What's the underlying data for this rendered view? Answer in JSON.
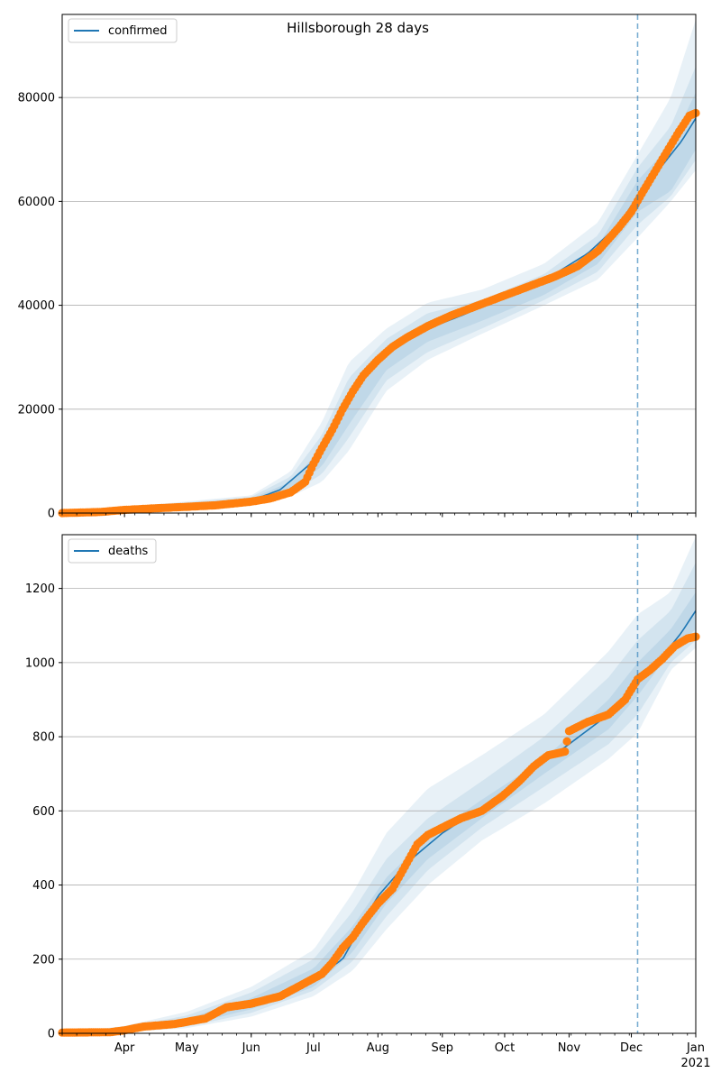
{
  "figure": {
    "title": "Hillsborough 28 days",
    "colors": {
      "model": "#1f77b4",
      "observed": "#ff7f0e",
      "band": "#1f77b4",
      "grid": "#b0b0b0",
      "forecast_line": "#1f77b4"
    }
  },
  "chart_data": [
    {
      "type": "line",
      "panel": "confirmed",
      "title": "Hillsborough 28 days",
      "legend": [
        "confirmed"
      ],
      "legend_position": "upper-left",
      "x_range": [
        "2020-03-02",
        "2021-01-01"
      ],
      "x_ticks": [
        {
          "date": "2020-04-01",
          "label": "Apr"
        },
        {
          "date": "2020-05-01",
          "label": "May"
        },
        {
          "date": "2020-06-01",
          "label": "Jun"
        },
        {
          "date": "2020-07-01",
          "label": "Jul"
        },
        {
          "date": "2020-08-01",
          "label": "Aug"
        },
        {
          "date": "2020-09-01",
          "label": "Sep"
        },
        {
          "date": "2020-10-01",
          "label": "Oct"
        },
        {
          "date": "2020-11-01",
          "label": "Nov"
        },
        {
          "date": "2020-12-01",
          "label": "Dec"
        },
        {
          "date": "2021-01-01",
          "label": "Jan"
        }
      ],
      "x_year_label": "2021",
      "x_tick_labels_shown": false,
      "ylim": [
        0,
        96000
      ],
      "yticks": [
        0,
        20000,
        40000,
        60000,
        80000
      ],
      "grid_y": true,
      "forecast_start": "2020-12-04",
      "model": {
        "name": "confirmed",
        "dates": [
          "2020-03-02",
          "2020-04-01",
          "2020-05-01",
          "2020-06-01",
          "2020-06-15",
          "2020-07-01",
          "2020-07-10",
          "2020-07-20",
          "2020-07-30",
          "2020-08-10",
          "2020-08-25",
          "2020-09-10",
          "2020-09-25",
          "2020-10-10",
          "2020-10-25",
          "2020-11-10",
          "2020-11-25",
          "2020-12-04",
          "2020-12-15",
          "2020-12-25",
          "2021-01-01"
        ],
        "values": [
          0,
          500,
          1200,
          2400,
          4500,
          10000,
          16000,
          23500,
          28500,
          32500,
          35500,
          38000,
          40500,
          43000,
          46000,
          50000,
          55500,
          61000,
          66500,
          71500,
          76000
        ]
      },
      "bands": [
        {
          "dates": [
            "2020-03-02",
            "2020-06-01",
            "2020-06-20",
            "2020-07-05",
            "2020-07-18",
            "2020-08-05",
            "2020-08-25",
            "2020-09-20",
            "2020-10-20",
            "2020-11-15",
            "2020-12-04",
            "2020-12-20",
            "2021-01-01"
          ],
          "lower": [
            0,
            2000,
            4500,
            9000,
            17000,
            27500,
            33000,
            37000,
            42000,
            48000,
            58000,
            62000,
            70000
          ],
          "upper": [
            0,
            2800,
            6000,
            12500,
            23000,
            31500,
            37000,
            39500,
            44500,
            51500,
            64000,
            71000,
            81000
          ]
        },
        {
          "dates": [
            "2020-03-02",
            "2020-06-01",
            "2020-06-20",
            "2020-07-05",
            "2020-07-18",
            "2020-08-05",
            "2020-08-25",
            "2020-09-20",
            "2020-10-20",
            "2020-11-15",
            "2020-12-04",
            "2020-12-20",
            "2021-01-01"
          ],
          "lower": [
            0,
            1700,
            3800,
            7500,
            14500,
            25500,
            31000,
            35500,
            41000,
            46500,
            55500,
            61000,
            68000
          ],
          "upper": [
            0,
            3100,
            7000,
            15000,
            26000,
            33500,
            38500,
            41000,
            46000,
            53500,
            66500,
            74500,
            86000
          ]
        },
        {
          "dates": [
            "2020-03-02",
            "2020-06-01",
            "2020-06-20",
            "2020-07-05",
            "2020-07-18",
            "2020-08-05",
            "2020-08-25",
            "2020-09-20",
            "2020-10-20",
            "2020-11-15",
            "2020-12-04",
            "2020-12-20",
            "2021-01-01"
          ],
          "lower": [
            0,
            1400,
            3200,
            6000,
            12000,
            23500,
            29500,
            34500,
            40000,
            45000,
            53000,
            60000,
            66000
          ],
          "upper": [
            0,
            3400,
            8000,
            17500,
            29000,
            35500,
            40500,
            43000,
            48000,
            56000,
            69000,
            80000,
            95000
          ]
        }
      ],
      "observed": {
        "name": "observed",
        "dates": [
          "2020-03-02",
          "2020-03-20",
          "2020-04-01",
          "2020-04-15",
          "2020-05-01",
          "2020-05-15",
          "2020-06-01",
          "2020-06-10",
          "2020-06-20",
          "2020-06-27",
          "2020-07-01",
          "2020-07-05",
          "2020-07-10",
          "2020-07-15",
          "2020-07-20",
          "2020-07-25",
          "2020-08-01",
          "2020-08-08",
          "2020-08-15",
          "2020-08-25",
          "2020-09-05",
          "2020-09-15",
          "2020-09-25",
          "2020-10-05",
          "2020-10-15",
          "2020-10-25",
          "2020-11-05",
          "2020-11-15",
          "2020-11-25",
          "2020-12-01",
          "2020-12-06",
          "2020-12-12",
          "2020-12-18",
          "2020-12-24",
          "2020-12-29",
          "2021-01-01"
        ],
        "values": [
          0,
          200,
          600,
          900,
          1200,
          1500,
          2200,
          2800,
          4000,
          6000,
          9500,
          12500,
          16000,
          20000,
          23500,
          26500,
          29500,
          32000,
          33800,
          36000,
          38000,
          39500,
          41000,
          42500,
          44000,
          45500,
          47500,
          50500,
          55000,
          58000,
          61500,
          65500,
          69500,
          73500,
          76500,
          77000
        ]
      }
    },
    {
      "type": "line",
      "panel": "deaths",
      "legend": [
        "deaths"
      ],
      "legend_position": "upper-left",
      "x_range": [
        "2020-03-02",
        "2021-01-01"
      ],
      "x_ticks": [
        {
          "date": "2020-04-01",
          "label": "Apr"
        },
        {
          "date": "2020-05-01",
          "label": "May"
        },
        {
          "date": "2020-06-01",
          "label": "Jun"
        },
        {
          "date": "2020-07-01",
          "label": "Jul"
        },
        {
          "date": "2020-08-01",
          "label": "Aug"
        },
        {
          "date": "2020-09-01",
          "label": "Sep"
        },
        {
          "date": "2020-10-01",
          "label": "Oct"
        },
        {
          "date": "2020-11-01",
          "label": "Nov"
        },
        {
          "date": "2020-12-01",
          "label": "Dec"
        },
        {
          "date": "2021-01-01",
          "label": "Jan"
        }
      ],
      "x_year_label": "2021",
      "x_tick_labels_shown": true,
      "ylim": [
        0,
        1345
      ],
      "yticks": [
        0,
        200,
        400,
        600,
        800,
        1000,
        1200
      ],
      "grid_y": true,
      "forecast_start": "2020-12-04",
      "model": {
        "name": "deaths",
        "dates": [
          "2020-03-02",
          "2020-04-01",
          "2020-05-01",
          "2020-06-01",
          "2020-06-20",
          "2020-07-01",
          "2020-07-15",
          "2020-08-01",
          "2020-08-15",
          "2020-09-01",
          "2020-09-20",
          "2020-10-10",
          "2020-11-01",
          "2020-11-20",
          "2020-12-04",
          "2020-12-15",
          "2020-12-25",
          "2021-01-01"
        ],
        "values": [
          0,
          10,
          30,
          80,
          110,
          145,
          200,
          370,
          460,
          540,
          610,
          690,
          780,
          860,
          950,
          1010,
          1080,
          1140
        ]
      },
      "bands": [
        {
          "dates": [
            "2020-03-02",
            "2020-04-01",
            "2020-05-01",
            "2020-06-01",
            "2020-07-01",
            "2020-07-20",
            "2020-08-05",
            "2020-08-25",
            "2020-09-20",
            "2020-10-20",
            "2020-11-20",
            "2020-12-04",
            "2020-12-20",
            "2021-01-01"
          ],
          "lower": [
            0,
            7,
            22,
            65,
            125,
            220,
            350,
            470,
            580,
            700,
            820,
            910,
            1030,
            1090
          ],
          "upper": [
            0,
            13,
            40,
            95,
            175,
            290,
            420,
            530,
            630,
            740,
            900,
            1000,
            1090,
            1190
          ]
        },
        {
          "dates": [
            "2020-03-02",
            "2020-04-01",
            "2020-05-01",
            "2020-06-01",
            "2020-07-01",
            "2020-07-20",
            "2020-08-05",
            "2020-08-25",
            "2020-09-20",
            "2020-10-20",
            "2020-11-20",
            "2020-12-04",
            "2020-12-20",
            "2021-01-01"
          ],
          "lower": [
            0,
            5,
            18,
            55,
            115,
            195,
            315,
            440,
            555,
            665,
            780,
            860,
            1000,
            1060
          ],
          "upper": [
            0,
            16,
            48,
            110,
            200,
            330,
            470,
            580,
            680,
            800,
            960,
            1060,
            1140,
            1270
          ]
        },
        {
          "dates": [
            "2020-03-02",
            "2020-04-01",
            "2020-05-01",
            "2020-06-01",
            "2020-07-01",
            "2020-07-20",
            "2020-08-05",
            "2020-08-25",
            "2020-09-20",
            "2020-10-20",
            "2020-11-20",
            "2020-12-04",
            "2020-12-20",
            "2021-01-01"
          ],
          "lower": [
            0,
            3,
            14,
            45,
            100,
            170,
            280,
            400,
            520,
            620,
            740,
            810,
            980,
            1040
          ],
          "upper": [
            0,
            20,
            58,
            125,
            225,
            380,
            540,
            660,
            750,
            860,
            1030,
            1130,
            1190,
            1340
          ]
        }
      ],
      "observed": {
        "name": "observed",
        "dates": [
          "2020-03-02",
          "2020-03-25",
          "2020-04-01",
          "2020-04-10",
          "2020-04-25",
          "2020-05-10",
          "2020-05-20",
          "2020-06-01",
          "2020-06-15",
          "2020-06-25",
          "2020-07-05",
          "2020-07-10",
          "2020-07-15",
          "2020-07-20",
          "2020-07-25",
          "2020-08-01",
          "2020-08-08",
          "2020-08-15",
          "2020-08-20",
          "2020-08-25",
          "2020-09-01",
          "2020-09-10",
          "2020-09-20",
          "2020-09-30",
          "2020-10-08",
          "2020-10-15",
          "2020-10-22",
          "2020-10-30",
          "2020-11-01",
          "2020-11-10",
          "2020-11-20",
          "2020-11-28",
          "2020-12-04",
          "2020-12-10",
          "2020-12-16",
          "2020-12-22",
          "2020-12-28",
          "2021-01-01"
        ],
        "values": [
          2,
          3,
          8,
          18,
          25,
          40,
          70,
          80,
          100,
          130,
          160,
          190,
          230,
          260,
          300,
          350,
          390,
          460,
          510,
          535,
          555,
          580,
          600,
          640,
          680,
          720,
          750,
          760,
          815,
          840,
          860,
          900,
          955,
          980,
          1010,
          1045,
          1065,
          1070
        ]
      }
    }
  ]
}
